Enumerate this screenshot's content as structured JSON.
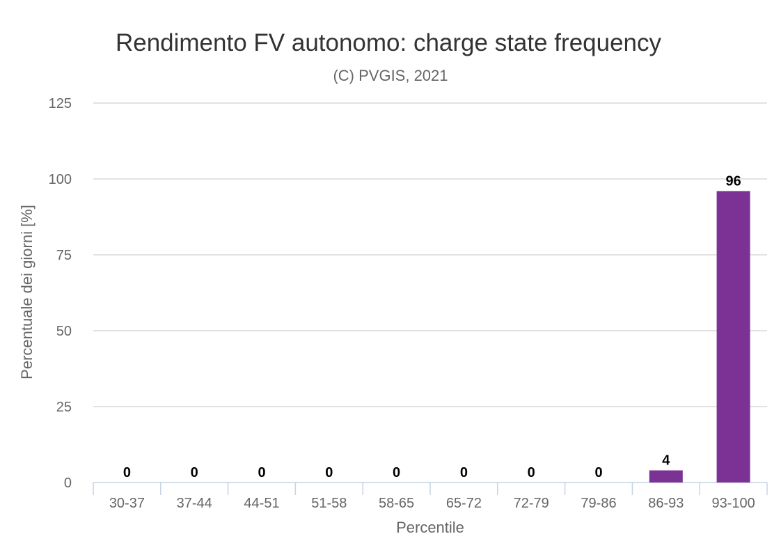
{
  "chart_data": {
    "type": "bar",
    "title": "Rendimento FV autonomo: charge state frequency",
    "subtitle": "(C) PVGIS, 2021",
    "xlabel": "Percentile",
    "ylabel": "Percentuale dei giorni [%]",
    "categories": [
      "30-37",
      "37-44",
      "44-51",
      "51-58",
      "58-65",
      "65-72",
      "72-79",
      "79-86",
      "86-93",
      "93-100"
    ],
    "values": [
      0,
      0,
      0,
      0,
      0,
      0,
      0,
      0,
      4,
      96
    ],
    "ylim": [
      0,
      125
    ],
    "yticks": [
      0,
      25,
      50,
      75,
      100,
      125
    ],
    "grid": true,
    "legend": "none",
    "bar_color": "#7b3294",
    "grid_color": "#d9d9d9",
    "axis_color": "#c6d3e3"
  }
}
